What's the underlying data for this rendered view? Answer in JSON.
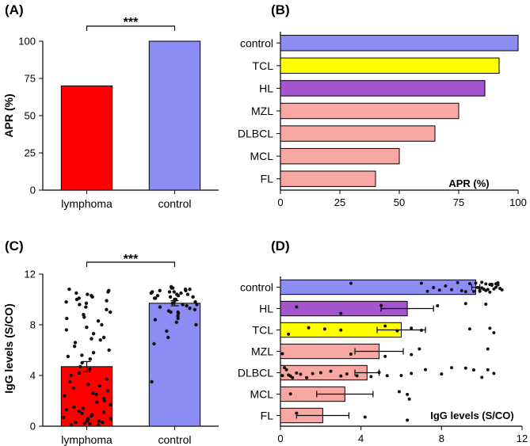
{
  "chart_data": [
    {
      "panel": "(A)",
      "type": "bar",
      "categories": [
        "lymphoma",
        "control"
      ],
      "values": [
        70,
        100
      ],
      "colors": [
        "#ff0000",
        "#8c8cf5"
      ],
      "ylabel": "APR (%)",
      "ylim": [
        0,
        100
      ],
      "yticks": [
        0,
        25,
        50,
        75,
        100
      ],
      "significance": "***"
    },
    {
      "panel": "(B)",
      "type": "bar",
      "orientation": "horizontal",
      "categories": [
        "control",
        "TCL",
        "HL",
        "MZL",
        "DLBCL",
        "MCL",
        "FL"
      ],
      "values": [
        100,
        92,
        86,
        75,
        65,
        50,
        40
      ],
      "colors": [
        "#8c8cf5",
        "#ffff00",
        "#a455cf",
        "#f9a7a3",
        "#f9a7a3",
        "#f9a7a3",
        "#f9a7a3"
      ],
      "xlabel": "APR (%)",
      "xlim": [
        0,
        100
      ],
      "xticks": [
        0,
        25,
        50,
        75,
        100
      ]
    },
    {
      "panel": "(C)",
      "type": "bar",
      "categories": [
        "lymphoma",
        "control"
      ],
      "values": [
        4.7,
        9.7
      ],
      "errors": [
        0.4,
        0.2
      ],
      "colors": [
        "#ff0000",
        "#8c8cf5"
      ],
      "ylabel": "IgG levels (S/CO)",
      "ylim": [
        0,
        12
      ],
      "yticks": [
        0,
        4,
        8,
        12
      ],
      "significance": "***",
      "points": [
        [
          0.1,
          0.1,
          0.2,
          0.2,
          0.3,
          0.3,
          0.4,
          0.4,
          0.5,
          0.6,
          0.7,
          0.8,
          0.9,
          1.0,
          1.1,
          1.2,
          1.4,
          1.5,
          1.7,
          1.9,
          2.0,
          2.2,
          2.4,
          2.6,
          2.8,
          3.0,
          3.2,
          3.5,
          3.7,
          4.0,
          4.2,
          4.5,
          4.7,
          5.0,
          5.3,
          5.5,
          5.8,
          6.0,
          6.3,
          6.6,
          6.8,
          7.0,
          7.3,
          7.6,
          7.8,
          8.0,
          8.3,
          8.5,
          8.8,
          9.0,
          9.2,
          9.4,
          9.6,
          9.7,
          9.8,
          9.9,
          10.0,
          10.1,
          10.2,
          10.3,
          10.4,
          10.5,
          10.6,
          10.7,
          10.8,
          2.5,
          1.3,
          0.6,
          3.3,
          5.6,
          6.9,
          8.6
        ],
        [
          3.5,
          6.5,
          7.0,
          7.5,
          8.0,
          8.2,
          8.5,
          8.7,
          8.9,
          9.0,
          9.1,
          9.2,
          9.3,
          9.4,
          9.5,
          9.6,
          9.6,
          9.7,
          9.8,
          9.9,
          10.0,
          10.0,
          10.1,
          10.1,
          10.2,
          10.2,
          10.3,
          10.3,
          10.4,
          10.4,
          10.5,
          10.5,
          10.6,
          10.6,
          10.7,
          10.7,
          10.8,
          10.8,
          10.9,
          10.9,
          11.0,
          9.0,
          8.4,
          9.9,
          10.6
        ]
      ]
    },
    {
      "panel": "(D)",
      "type": "bar",
      "orientation": "horizontal",
      "categories": [
        "control",
        "HL",
        "TCL",
        "MZL",
        "DLBCL",
        "MCL",
        "FL"
      ],
      "values": [
        9.7,
        6.3,
        6.0,
        4.9,
        4.3,
        3.2,
        2.1
      ],
      "errors": [
        0.2,
        1.3,
        1.2,
        1.2,
        0.6,
        1.4,
        1.3
      ],
      "colors": [
        "#8c8cf5",
        "#a455cf",
        "#ffff00",
        "#f9a7a3",
        "#f9a7a3",
        "#f9a7a3",
        "#f9a7a3"
      ],
      "xlabel": "IgG levels (S/CO)",
      "xlim": [
        0,
        12
      ],
      "xticks": [
        0,
        4,
        8,
        12
      ],
      "points": [
        [
          3.5,
          7.0,
          7.3,
          7.6,
          7.9,
          8.2,
          8.5,
          8.8,
          9.0,
          9.2,
          9.4,
          9.6,
          9.7,
          9.8,
          9.9,
          10.0,
          10.1,
          10.2,
          10.3,
          10.4,
          10.5,
          10.6,
          10.7,
          10.8,
          10.9,
          11.0,
          9.9,
          10.2,
          10.5,
          10.8,
          10.0,
          10.4,
          10.7
        ],
        [
          0.8,
          3.0,
          5.0,
          7.8,
          9.2,
          10.2
        ],
        [
          0.4,
          1.4,
          2.2,
          3.0,
          5.2,
          5.8,
          6.5,
          7.0,
          9.4,
          10.4,
          10.6
        ],
        [
          0.1,
          3.5,
          5.2,
          6.5,
          6.9,
          10.3
        ],
        [
          0.1,
          0.2,
          0.3,
          0.4,
          0.5,
          0.6,
          0.8,
          1.0,
          1.3,
          1.6,
          2.0,
          2.5,
          3.0,
          3.3,
          3.8,
          4.5,
          4.9,
          5.3,
          6.0,
          6.5,
          7.2,
          8.0,
          8.5,
          9.2,
          9.6,
          10.0,
          10.3,
          10.6
        ],
        [
          0.5,
          5.9,
          6.3,
          6.4
        ],
        [
          0.8,
          4.2,
          6.3
        ]
      ]
    }
  ]
}
